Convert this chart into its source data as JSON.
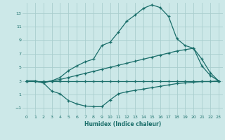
{
  "xlabel": "Humidex (Indice chaleur)",
  "bg_color": "#cce8e8",
  "grid_color": "#aacece",
  "line_color": "#1a6e6a",
  "xlim": [
    -0.5,
    23.5
  ],
  "ylim": [
    -2.0,
    14.5
  ],
  "yticks": [
    -1,
    1,
    3,
    5,
    7,
    9,
    11,
    13
  ],
  "xticks": [
    0,
    1,
    2,
    3,
    4,
    5,
    6,
    7,
    8,
    9,
    10,
    11,
    12,
    13,
    14,
    15,
    16,
    17,
    18,
    19,
    20,
    21,
    22,
    23
  ],
  "line1_x": [
    0,
    1,
    2,
    3,
    4,
    5,
    6,
    7,
    8,
    9,
    10,
    11,
    12,
    13,
    14,
    15,
    16,
    17,
    18,
    19,
    20,
    21,
    22,
    23
  ],
  "line1_y": [
    3.0,
    3.0,
    2.7,
    3.0,
    3.5,
    4.5,
    5.2,
    5.8,
    6.2,
    8.2,
    8.7,
    10.2,
    11.8,
    12.7,
    13.7,
    14.2,
    13.8,
    12.5,
    9.2,
    8.2,
    7.8,
    5.2,
    3.8,
    3.0
  ],
  "line2_x": [
    0,
    2,
    3,
    4,
    5,
    6,
    7,
    8,
    9,
    10,
    11,
    12,
    13,
    14,
    15,
    16,
    17,
    18,
    19,
    20,
    21,
    22,
    23
  ],
  "line2_y": [
    3.0,
    2.8,
    3.0,
    3.2,
    3.5,
    3.8,
    4.1,
    4.4,
    4.7,
    5.0,
    5.3,
    5.6,
    5.9,
    6.2,
    6.5,
    6.8,
    7.1,
    7.4,
    7.6,
    7.8,
    6.2,
    4.2,
    3.0
  ],
  "line3_x": [
    0,
    2,
    3,
    4,
    5,
    6,
    7,
    8,
    9,
    10,
    11,
    12,
    13,
    14,
    15,
    16,
    17,
    18,
    19,
    20,
    21,
    22,
    23
  ],
  "line3_y": [
    3.0,
    3.0,
    3.0,
    3.0,
    3.0,
    3.0,
    3.0,
    3.0,
    3.0,
    3.0,
    3.0,
    3.0,
    3.0,
    3.0,
    3.0,
    3.0,
    3.0,
    3.0,
    3.0,
    3.0,
    3.0,
    3.0,
    3.0
  ],
  "line4_x": [
    0,
    1,
    2,
    3,
    4,
    5,
    6,
    7,
    8,
    9,
    10,
    11,
    12,
    13,
    14,
    15,
    16,
    17,
    18,
    19,
    20,
    21,
    22,
    23
  ],
  "line4_y": [
    3.0,
    3.0,
    2.7,
    1.5,
    1.1,
    0.1,
    -0.4,
    -0.7,
    -0.8,
    -0.8,
    0.2,
    1.1,
    1.4,
    1.6,
    1.8,
    2.0,
    2.2,
    2.4,
    2.6,
    2.7,
    2.8,
    2.9,
    2.9,
    3.0
  ]
}
